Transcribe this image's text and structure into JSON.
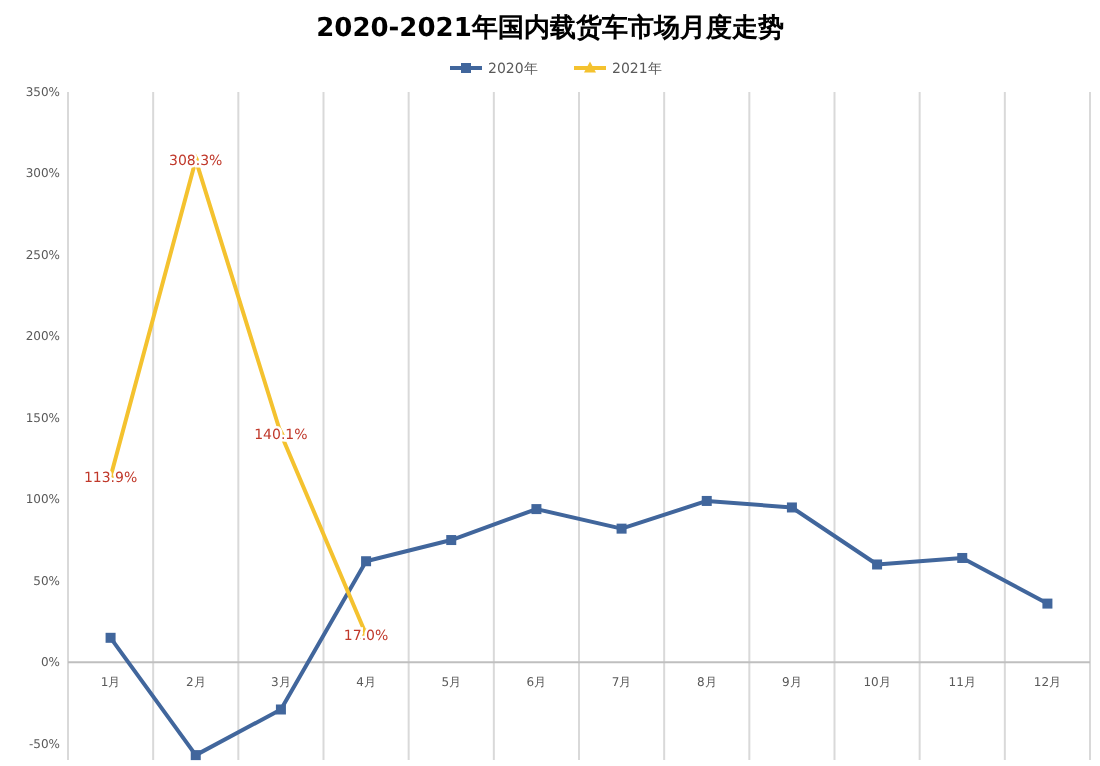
{
  "chart_data": {
    "type": "line",
    "title": "2020-2021年国内载货车市场月度走势",
    "categories": [
      "1月",
      "2月",
      "3月",
      "4月",
      "5月",
      "6月",
      "7月",
      "8月",
      "9月",
      "10月",
      "11月",
      "12月"
    ],
    "series": [
      {
        "name": "2020年",
        "color": "#41669c",
        "marker": "square",
        "values": [
          15,
          -57,
          -29,
          62,
          75,
          94,
          82,
          99,
          95,
          60,
          64,
          36
        ]
      },
      {
        "name": "2021年",
        "color": "#f4c22f",
        "marker": "triangle",
        "values": [
          113.9,
          308.3,
          140.1,
          17.0,
          null,
          null,
          null,
          null,
          null,
          null,
          null,
          null
        ],
        "value_labels": [
          "113.9%",
          "308.3%",
          "140.1%",
          "17.0%",
          null,
          null,
          null,
          null,
          null,
          null,
          null,
          null
        ]
      }
    ],
    "ylim": [
      -60,
      350
    ],
    "yticks": [
      {
        "value": -50,
        "label": "-50%"
      },
      {
        "value": 0,
        "label": "0%"
      },
      {
        "value": 50,
        "label": "50%"
      },
      {
        "value": 100,
        "label": "100%"
      },
      {
        "value": 150,
        "label": "150%"
      },
      {
        "value": 200,
        "label": "200%"
      },
      {
        "value": 250,
        "label": "250%"
      },
      {
        "value": 300,
        "label": "300%"
      },
      {
        "value": 350,
        "label": "350%"
      }
    ],
    "grid": "x",
    "legend": "top"
  }
}
